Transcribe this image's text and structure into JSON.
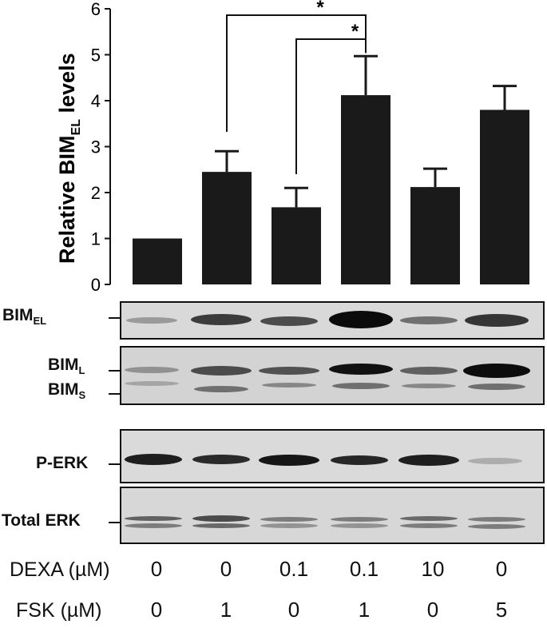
{
  "chart_data": {
    "type": "bar",
    "ylabel": {
      "main": "Relative BIM",
      "subscript": "EL",
      "suffix": " levels"
    },
    "ylim": [
      0,
      6
    ],
    "yticks": [
      "0",
      "1",
      "2",
      "3",
      "4",
      "5",
      "6"
    ],
    "values": [
      1.0,
      2.45,
      1.68,
      4.12,
      2.12,
      3.8
    ],
    "errors": [
      0,
      0.45,
      0.42,
      0.85,
      0.4,
      0.52
    ],
    "bar_color": "#1a1a1a",
    "significance": [
      {
        "from": 1,
        "to": 3,
        "label": "*"
      },
      {
        "from": 2,
        "to": 3,
        "label": "*"
      }
    ]
  },
  "blots": [
    {
      "labels": [
        {
          "text": "BIM",
          "sub": "EL"
        }
      ]
    },
    {
      "labels": [
        {
          "text": "BIM",
          "sub": "L"
        },
        {
          "text": "BIM",
          "sub": "S"
        }
      ]
    },
    {
      "labels": [
        {
          "text": "P-ERK",
          "sub": ""
        }
      ]
    },
    {
      "labels": [
        {
          "text": "Total ERK",
          "sub": ""
        }
      ]
    }
  ],
  "conditions": [
    {
      "label": "DEXA (µM)",
      "values": [
        "0",
        "0",
        "0.1",
        "0.1",
        "10",
        "0"
      ]
    },
    {
      "label": "FSK (µM)",
      "values": [
        "0",
        "1",
        "0",
        "1",
        "0",
        "5"
      ]
    }
  ]
}
